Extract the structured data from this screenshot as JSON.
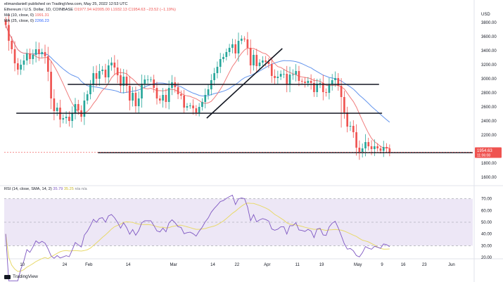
{
  "header": {
    "author": "elimandaniell published on TradingView.com, May 25, 2022 12:53 UTC",
    "symbol_line": "Ethereum / U.S. Dollar, 1D, COINBASE",
    "ohlc": "O1977.94  H2005.00  L1932.13  C1954.63  −23.52 (−1.19%)",
    "ma10": "MA (10, close, 0)",
    "ma10_value": "1991.31",
    "ma25": "MA (25, close, 0)",
    "ma25_value": "2266.23"
  },
  "rsi_header": {
    "label": "RSI (14, close, SMA, 14, 2)",
    "rsi_value": "35.79",
    "sma_value": "35.25",
    "extra": "n/a  n/a"
  },
  "price_axis": {
    "currency": "USD",
    "ticks": [
      "3800.00",
      "3600.00",
      "3400.00",
      "3200.00",
      "3000.00",
      "2800.00",
      "2600.00",
      "2400.00",
      "2200.00",
      "2000.00",
      "1800.00",
      "1600.00"
    ],
    "last_price": "1954.63",
    "countdown": "11:06:08"
  },
  "rsi_axis": {
    "ticks": [
      "70.00",
      "60.00",
      "50.00",
      "40.00",
      "30.00",
      "20.00"
    ]
  },
  "time_axis": {
    "labels": [
      "10",
      "24",
      "Feb",
      "14",
      "Mar",
      "14",
      "22",
      "Apr",
      "11",
      "19",
      "May",
      "9",
      "16",
      "23",
      "Jun"
    ]
  },
  "branding": {
    "logo_text": "TradingView"
  },
  "colors": {
    "up": "#26a69a",
    "down": "#ef5350",
    "ma10": "#f07c7c",
    "ma25": "#6495ed",
    "rsi_line": "#7e57c2",
    "rsi_sma": "#e8d96a",
    "rsi_band": "#ede7f6",
    "support": "#131722"
  },
  "chart_data": [
    {
      "type": "candlestick",
      "title": "Ethereum / U.S. Dollar, 1D, COINBASE",
      "ylim": [
        1500,
        4000
      ],
      "x_range": [
        "2022-01-04",
        "2022-06-08"
      ],
      "candles_close": [
        3765,
        3540,
        3420,
        3220,
        3130,
        3200,
        3260,
        3360,
        3280,
        3340,
        3420,
        3350,
        3380,
        3320,
        3100,
        2720,
        2540,
        2590,
        2420,
        2440,
        2460,
        2400,
        2510,
        2640,
        2550,
        2460,
        2690,
        2780,
        2910,
        3080,
        3000,
        3110,
        3130,
        3020,
        3190,
        3230,
        3160,
        3050,
        2900,
        3030,
        2900,
        2690,
        2800,
        2610,
        2720,
        2930,
        2990,
        2990,
        2990,
        2870,
        2720,
        2690,
        2770,
        2670,
        2870,
        2950,
        2880,
        2780,
        2760,
        2590,
        2610,
        2620,
        2580,
        2520,
        2600,
        2670,
        2770,
        2850,
        2980,
        3080,
        3170,
        3280,
        3310,
        3380,
        3440,
        3490,
        3360,
        3540,
        3570,
        3560,
        3440,
        3190,
        3340,
        3180,
        3230,
        3260,
        3240,
        3210,
        3040,
        3010,
        3030,
        3070,
        3070,
        2920,
        3060,
        3060,
        3110,
        2970,
        2960,
        2940,
        2970,
        2940,
        2810,
        2930,
        2940,
        2810,
        2800,
        2920,
        2980,
        3010,
        2900,
        2740,
        2520,
        2320,
        2330,
        2240,
        2020,
        1950,
        2010,
        2100,
        2040,
        2000,
        2040,
        2010,
        1975,
        2030,
        2010,
        1954.63
      ],
      "series": [
        {
          "name": "MA (10, close, 0)",
          "last": 1991.31
        },
        {
          "name": "MA (25, close, 0)",
          "last": 2266.23
        }
      ],
      "annotations": [
        {
          "kind": "horizontal-line",
          "y": 2920,
          "from": "2022-01-25",
          "to": "2022-05-08"
        },
        {
          "kind": "horizontal-line",
          "y": 2510,
          "from": "2022-01-08",
          "to": "2022-05-09"
        },
        {
          "kind": "horizontal-line",
          "y": 1950,
          "from": "2022-02-04",
          "to": "2022-06-08"
        },
        {
          "kind": "trend-line",
          "from": [
            "2022-03-12",
            2440
          ],
          "to": [
            "2022-04-06",
            3430
          ]
        }
      ]
    },
    {
      "type": "line",
      "title": "RSI (14, close, SMA, 14, 2)",
      "ylim": [
        20,
        80
      ],
      "band": [
        30,
        70
      ],
      "midline": 50,
      "rsi_last": 35.79,
      "sma_last": 35.25
    }
  ]
}
